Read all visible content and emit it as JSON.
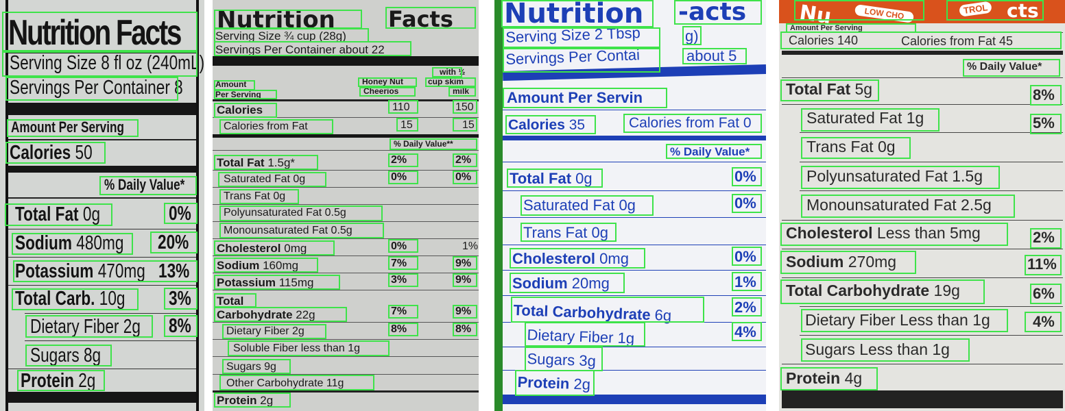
{
  "panels": [
    {
      "title": "Nutrition Facts",
      "serving_size": "Serving Size 8 fl oz (240mL)",
      "servings_per_container": "Servings Per Container 8",
      "amount_per_serving": "Amount Per Serving",
      "calories": {
        "label": "Calories",
        "value": "50"
      },
      "daily_value_header": "% Daily Value*",
      "rows": [
        {
          "label": "Total Fat",
          "amount": "0g",
          "dv": "0%"
        },
        {
          "label": "Sodium",
          "amount": "480mg",
          "dv": "20%"
        },
        {
          "label": "Potassium",
          "amount": "470mg",
          "dv": "13%"
        },
        {
          "label": "Total Carb.",
          "amount": "10g",
          "dv": "3%"
        },
        {
          "label": "Dietary Fiber",
          "amount": "2g",
          "dv": "8%"
        },
        {
          "label": "Sugars",
          "amount": "8g",
          "dv": ""
        },
        {
          "label": "Protein",
          "amount": "2g",
          "dv": ""
        }
      ]
    },
    {
      "title_left": "Nutrition",
      "title_right": "Facts",
      "serving_size": "Serving Size ¾ cup (28g)",
      "servings_per_container": "Servings Per Container about 22",
      "amount_per_serving_line1": "Amount",
      "amount_per_serving_line2": "Per Serving",
      "col1_header_line1": "Honey Nut",
      "col1_header_line2": "Cheerios",
      "col2_header_line1": "with ½",
      "col2_header_line2": "cup skim",
      "col2_header_line3": "milk",
      "calories": {
        "label": "Calories",
        "v1": "110",
        "v2": "150"
      },
      "calories_from_fat": {
        "label": "Calories from Fat",
        "v1": "15",
        "v2": "15"
      },
      "daily_value_header": "% Daily Value**",
      "rows": [
        {
          "label": "Total Fat",
          "amount": "1.5g*",
          "v1": "2%",
          "v2": "2%"
        },
        {
          "label": "Saturated Fat",
          "amount": "0g",
          "v1": "0%",
          "v2": "0%"
        },
        {
          "label": "Trans Fat",
          "amount": "0g",
          "v1": "",
          "v2": ""
        },
        {
          "label": "Polyunsaturated Fat",
          "amount": "0.5g",
          "v1": "",
          "v2": ""
        },
        {
          "label": "Monounsaturated Fat",
          "amount": "0.5g",
          "v1": "",
          "v2": ""
        },
        {
          "label": "Cholesterol",
          "amount": "0mg",
          "v1": "0%",
          "v2": "1%"
        },
        {
          "label": "Sodium",
          "amount": "160mg",
          "v1": "7%",
          "v2": "9%"
        },
        {
          "label": "Potassium",
          "amount": "115mg",
          "v1": "3%",
          "v2": "9%"
        },
        {
          "label": "Total",
          "amount": "",
          "v1": "",
          "v2": ""
        },
        {
          "label": "Carbohydrate",
          "amount": "22g",
          "v1": "7%",
          "v2": "9%"
        },
        {
          "label": "Dietary Fiber",
          "amount": "2g",
          "v1": "8%",
          "v2": "8%"
        },
        {
          "label": "Soluble Fiber",
          "amount": "less than 1g",
          "v1": "",
          "v2": ""
        },
        {
          "label": "Sugars",
          "amount": "9g",
          "v1": "",
          "v2": ""
        },
        {
          "label": "Other Carbohydrate",
          "amount": "11g",
          "v1": "",
          "v2": ""
        },
        {
          "label": "Protein",
          "amount": "2g",
          "v1": "",
          "v2": ""
        }
      ]
    },
    {
      "title_left": "Nutrition",
      "title_right": "-acts",
      "serving_size": "Serving Size 2 Tbsp",
      "serving_size_cont": "g)",
      "servings_per_container": "Servings Per Contai",
      "servings_per_container_cont": "about 5",
      "amount_per_serving": "Amount Per Servin",
      "calories": {
        "label": "Calories",
        "value": "35"
      },
      "calories_from_fat": "Calories from Fat 0",
      "daily_value_header": "% Daily Value*",
      "rows": [
        {
          "label": "Total Fat",
          "amount": "0g",
          "dv": "0%"
        },
        {
          "label": "Saturated Fat",
          "amount": "0g",
          "dv": "0%"
        },
        {
          "label": "Trans Fat",
          "amount": "0g",
          "dv": ""
        },
        {
          "label": "Cholesterol",
          "amount": "0mg",
          "dv": "0%"
        },
        {
          "label": "Sodium",
          "amount": "20mg",
          "dv": "1%"
        },
        {
          "label": "Total Carbohydrate",
          "amount": "6g",
          "dv": "2%"
        },
        {
          "label": "Dietary Fiber",
          "amount": "1g",
          "dv": "4%"
        },
        {
          "label": "Sugars",
          "amount": "3g",
          "dv": ""
        },
        {
          "label": "Protein",
          "amount": "2g",
          "dv": ""
        }
      ]
    },
    {
      "header_left": "Nu",
      "header_mid": "LOW CHO",
      "header_right": "TROL",
      "header_right2": "cts",
      "amount_per_serving": "Amount Per Serving",
      "calories": "Calories 140",
      "calories_from_fat": "Calories from Fat 45",
      "daily_value_header": "% Daily Value*",
      "rows": [
        {
          "label": "Total Fat",
          "amount": "5g",
          "dv": "8%"
        },
        {
          "label": "Saturated Fat",
          "amount": "1g",
          "dv": "5%"
        },
        {
          "label": "Trans Fat",
          "amount": "0g",
          "dv": ""
        },
        {
          "label": "Polyunsaturated Fat",
          "amount": "1.5g",
          "dv": ""
        },
        {
          "label": "Monounsaturated Fat",
          "amount": "2.5g",
          "dv": ""
        },
        {
          "label": "Cholesterol",
          "amount": "Less than 5mg",
          "dv": "2%"
        },
        {
          "label": "Sodium",
          "amount": "270mg",
          "dv": "11%"
        },
        {
          "label": "Total Carbohydrate",
          "amount": "19g",
          "dv": "6%"
        },
        {
          "label": "Dietary Fiber",
          "amount": "Less than 1g",
          "dv": "4%"
        },
        {
          "label": "Sugars",
          "amount": "Less than 1g",
          "dv": ""
        },
        {
          "label": "Protein",
          "amount": "4g",
          "dv": ""
        }
      ]
    }
  ]
}
